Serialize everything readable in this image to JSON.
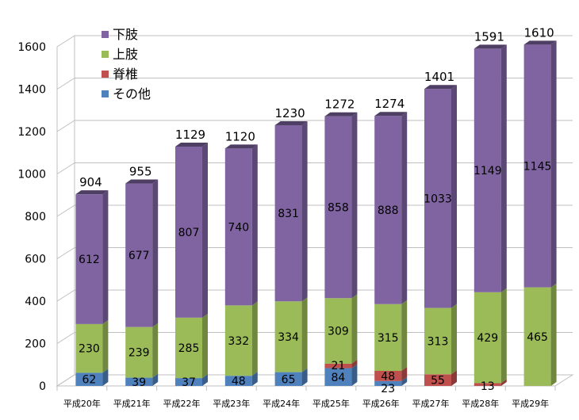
{
  "chart_data": {
    "type": "bar",
    "stacked": true,
    "style": "3d",
    "categories": [
      "平成20年",
      "平成21年",
      "平成22年",
      "平成23年",
      "平成24年",
      "平成25年",
      "平成26年",
      "平成27年",
      "平成28年",
      "平成29年"
    ],
    "series": [
      {
        "name": "その他",
        "color": "#4f81bd",
        "values": [
          62,
          39,
          37,
          48,
          65,
          84,
          23,
          0,
          0,
          0
        ],
        "labels": [
          "62",
          "39",
          "37",
          "48",
          "65",
          "84",
          "23",
          "",
          "",
          ""
        ]
      },
      {
        "name": "脊椎",
        "color": "#c0504d",
        "values": [
          0,
          0,
          0,
          0,
          0,
          21,
          48,
          55,
          13,
          0
        ],
        "labels": [
          "",
          "",
          "",
          "",
          "",
          "21",
          "48",
          "55",
          "13",
          ""
        ]
      },
      {
        "name": "上肢",
        "color": "#9bbb59",
        "values": [
          230,
          239,
          285,
          332,
          334,
          309,
          315,
          313,
          429,
          465
        ],
        "labels": [
          "230",
          "239",
          "285",
          "332",
          "334",
          "309",
          "315",
          "313",
          "429",
          "465"
        ]
      },
      {
        "name": "下肢",
        "color": "#8064a2",
        "values": [
          612,
          677,
          807,
          740,
          831,
          858,
          888,
          1033,
          1149,
          1145
        ],
        "labels": [
          "612",
          "677",
          "807",
          "740",
          "831",
          "858",
          "888",
          "1033",
          "1149",
          "1145"
        ]
      }
    ],
    "totals": [
      904,
      955,
      1129,
      1120,
      1230,
      1272,
      1274,
      1401,
      1591,
      1610
    ],
    "legend_order": [
      "下肢",
      "上肢",
      "脊椎",
      "その他"
    ],
    "legend_position": "top-left",
    "ylim": [
      0,
      1600
    ],
    "yticks": [
      "0",
      "200",
      "400",
      "600",
      "800",
      "1000",
      "1200",
      "1400",
      "1600"
    ],
    "grid": true
  }
}
